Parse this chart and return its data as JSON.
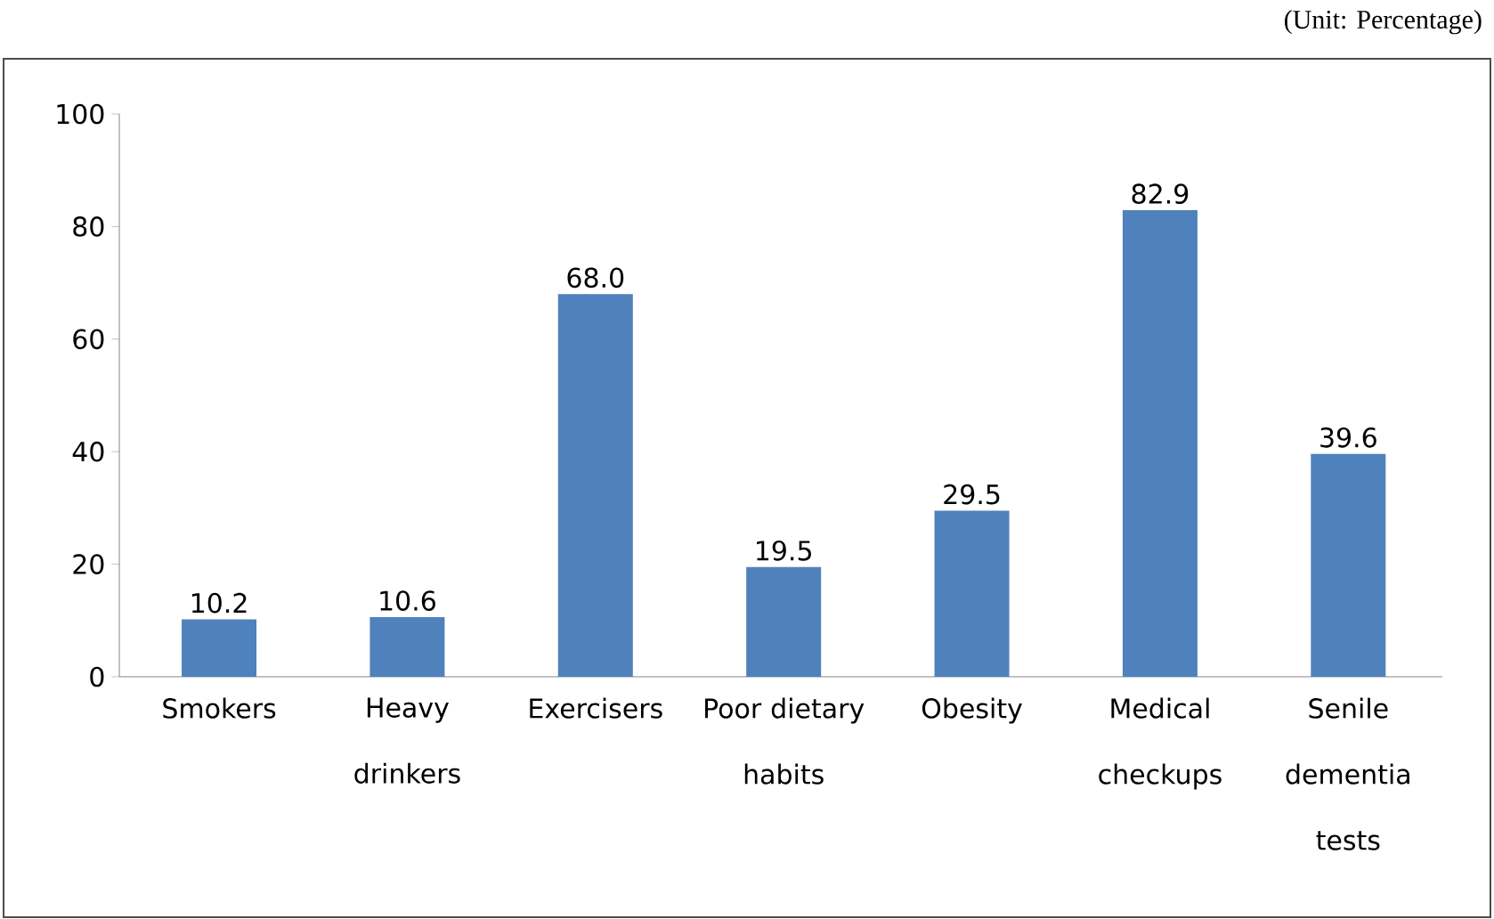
{
  "chart_data": {
    "type": "bar",
    "annotations": [
      "(Unit: Percentage)"
    ],
    "categories": [
      "Smokers",
      "Heavy drinkers",
      "Exercisers",
      "Poor dietary habits",
      "Obesity",
      "Medical checkups",
      "Senile dementia tests"
    ],
    "values": [
      10.2,
      10.6,
      68.0,
      19.5,
      29.5,
      82.9,
      39.6
    ],
    "value_labels": [
      "10.2",
      "10.6",
      "68.0",
      "19.5",
      "29.5",
      "82.9",
      "39.6"
    ],
    "color": "#4f81bd",
    "ylim": [
      0,
      100
    ],
    "yticks": [
      0,
      20,
      40,
      60,
      80,
      100
    ],
    "grid": false,
    "legend": false
  }
}
